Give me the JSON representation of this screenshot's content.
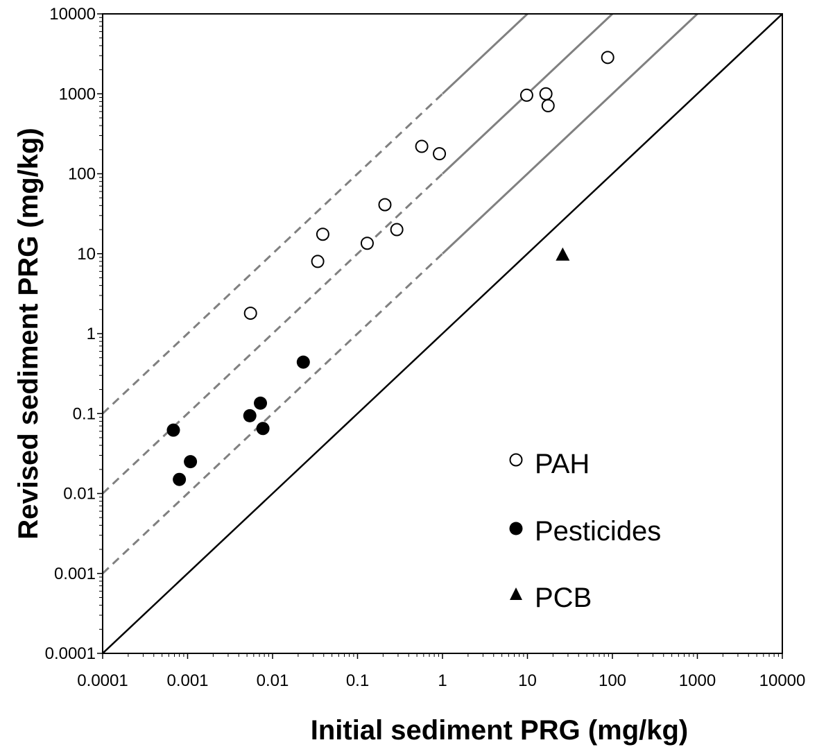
{
  "chart_data": {
    "type": "scatter",
    "xlabel": "Initial sediment PRG (mg/kg)",
    "ylabel": "Revised sediment PRG (mg/kg)",
    "xscale": "log",
    "yscale": "log",
    "xlim": [
      0.0001,
      10000
    ],
    "ylim": [
      0.0001,
      10000
    ],
    "x_ticks": [
      "0.0001",
      "0.001",
      "0.01",
      "0.1",
      "1",
      "10",
      "100",
      "1000",
      "10000"
    ],
    "y_ticks": [
      "0.0001",
      "0.001",
      "0.01",
      "0.1",
      "1",
      "10",
      "100",
      "1000",
      "10000"
    ],
    "grid": false,
    "legend_position": "bottom-right",
    "reference_lines": [
      {
        "relation": "y = x",
        "color": "#000000",
        "style": "solid"
      },
      {
        "relation": "y = 10x",
        "color": "#808080",
        "style": "dashed below x = 1, solid above"
      },
      {
        "relation": "y = 100x",
        "color": "#808080",
        "style": "dashed below x = 1, solid above"
      },
      {
        "relation": "y = 1000x",
        "color": "#808080",
        "style": "dashed below x = 1, solid above"
      }
    ],
    "series": [
      {
        "name": "PAH",
        "marker": "open-circle",
        "points": [
          [
            0.0055,
            1.8
          ],
          [
            0.034,
            8.0
          ],
          [
            0.039,
            17.5
          ],
          [
            0.13,
            13.5
          ],
          [
            0.21,
            41
          ],
          [
            0.29,
            20
          ],
          [
            0.57,
            220
          ],
          [
            0.92,
            178
          ],
          [
            9.8,
            960
          ],
          [
            16.5,
            1000
          ],
          [
            17.5,
            710
          ],
          [
            88,
            2850
          ]
        ]
      },
      {
        "name": "Pesticides",
        "marker": "filled-circle",
        "points": [
          [
            0.00068,
            0.062
          ],
          [
            0.0008,
            0.015
          ],
          [
            0.00108,
            0.025
          ],
          [
            0.0054,
            0.094
          ],
          [
            0.0072,
            0.135
          ],
          [
            0.0077,
            0.065
          ],
          [
            0.023,
            0.44
          ]
        ]
      },
      {
        "name": "PCB",
        "marker": "filled-triangle",
        "points": [
          [
            26,
            9.8
          ]
        ]
      }
    ]
  }
}
